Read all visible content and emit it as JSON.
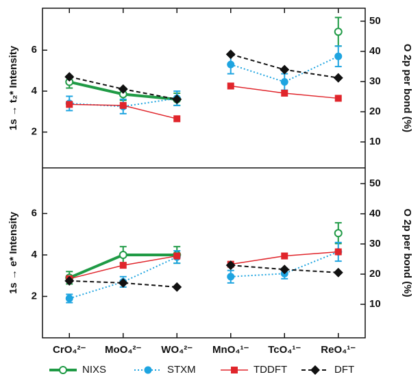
{
  "chart_data": [
    {
      "type": "line",
      "ylabel": "1s → t₂* Intensity",
      "y2label": "O 2p per bond (%)",
      "ylim": [
        0.25,
        8.05
      ],
      "yticks": [
        2,
        4,
        6
      ],
      "y2lim": [
        1.4,
        54.3
      ],
      "y2ticks": [
        10,
        20,
        30,
        40,
        50
      ],
      "series": [
        {
          "name": "NIXS",
          "color": "#1f9a45",
          "values": [
            4.45,
            3.85,
            3.6,
            null,
            null,
            6.9
          ],
          "errors": [
            0.3,
            0.3,
            0.3,
            null,
            null,
            0.7
          ]
        },
        {
          "name": "STXM",
          "color": "#1ea4e0",
          "values": [
            3.4,
            3.25,
            3.65,
            5.3,
            4.45,
            5.7
          ],
          "errors": [
            0.35,
            0.35,
            0.35,
            0.45,
            0.4,
            0.5
          ]
        },
        {
          "name": "TDDFT",
          "color": "#e0252b",
          "values": [
            3.35,
            3.3,
            2.65,
            4.25,
            3.9,
            3.65
          ]
        },
        {
          "name": "DFT",
          "color": "#111111",
          "values": [
            4.7,
            4.1,
            3.6,
            5.8,
            5.05,
            4.65
          ]
        }
      ]
    },
    {
      "type": "line",
      "ylabel": "1s → e* Intensity",
      "y2label": "O 2p per bond (%)",
      "categories": [
        "CrO₄²⁻",
        "MoO₄²⁻",
        "WO₄²⁻",
        "MnO₄¹⁻",
        "TcO₄¹⁻",
        "ReO₄¹⁻"
      ],
      "ylim": [
        0,
        8.2
      ],
      "yticks": [
        2,
        4,
        6
      ],
      "y2lim": [
        -1.1,
        55.2
      ],
      "y2ticks": [
        10,
        20,
        30,
        40,
        50
      ],
      "series": [
        {
          "color": "#1f9a45",
          "values": [
            2.9,
            4.0,
            4.0,
            null,
            null,
            5.05
          ],
          "errors": [
            0.3,
            0.4,
            0.4,
            null,
            null,
            0.5
          ]
        },
        {
          "color": "#1ea4e0",
          "values": [
            1.9,
            2.7,
            3.9,
            2.95,
            3.1,
            4.15
          ],
          "errors": [
            0.2,
            0.25,
            0.3,
            0.3,
            0.25,
            0.45
          ]
        },
        {
          "color": "#e0252b",
          "values": [
            2.85,
            3.5,
            3.95,
            3.55,
            3.95,
            4.15
          ]
        },
        {
          "color": "#111111",
          "values": [
            2.75,
            2.65,
            2.45,
            3.5,
            3.3,
            3.15
          ]
        }
      ]
    }
  ]
}
